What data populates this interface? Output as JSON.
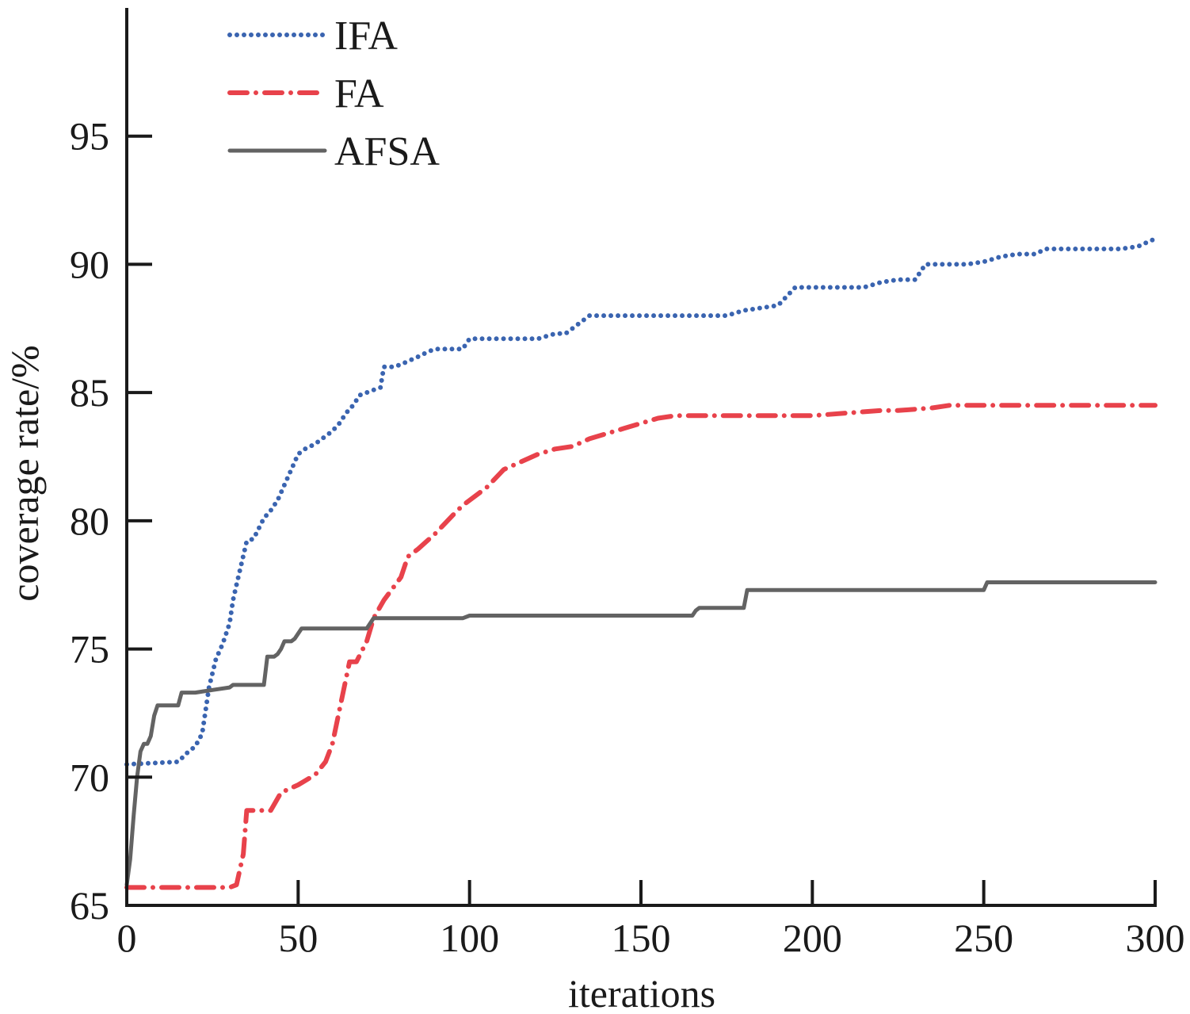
{
  "chart_data": {
    "type": "line",
    "title": "",
    "xlabel": "iterations",
    "ylabel": "coverage rate/%",
    "xlim": [
      0,
      300
    ],
    "ylim": [
      65,
      100
    ],
    "xticks": [
      0,
      50,
      100,
      150,
      200,
      250,
      300
    ],
    "yticks": [
      65,
      70,
      75,
      80,
      85,
      90,
      95
    ],
    "grid": false,
    "legend_position": "top-left",
    "series": [
      {
        "name": "IFA",
        "color": "#3a64b0",
        "style": "dotted",
        "x": [
          0,
          15,
          18,
          20,
          22,
          24,
          26,
          28,
          30,
          31,
          32,
          35,
          37,
          40,
          42,
          44,
          46,
          48,
          50,
          52,
          55,
          58,
          60,
          62,
          64,
          66,
          68,
          70,
          72,
          74,
          75,
          78,
          80,
          85,
          88,
          90,
          95,
          98,
          100,
          105,
          110,
          115,
          120,
          125,
          128,
          130,
          135,
          140,
          145,
          150,
          155,
          160,
          165,
          170,
          175,
          180,
          185,
          190,
          195,
          200,
          205,
          210,
          215,
          220,
          225,
          230,
          233,
          235,
          240,
          245,
          250,
          255,
          260,
          265,
          268,
          270,
          275,
          280,
          285,
          290,
          295,
          300
        ],
        "y": [
          70.5,
          70.6,
          71.0,
          71.2,
          71.7,
          73.5,
          74.6,
          75.2,
          76.0,
          76.9,
          77.5,
          79.2,
          79.3,
          80.1,
          80.4,
          80.8,
          81.4,
          82.0,
          82.6,
          82.8,
          83.0,
          83.3,
          83.5,
          83.8,
          84.2,
          84.5,
          84.9,
          85.0,
          85.1,
          85.2,
          86.0,
          86.0,
          86.1,
          86.4,
          86.6,
          86.7,
          86.7,
          86.7,
          87.1,
          87.1,
          87.1,
          87.1,
          87.1,
          87.3,
          87.3,
          87.5,
          88.0,
          88.0,
          88.0,
          88.0,
          88.0,
          88.0,
          88.0,
          88.0,
          88.0,
          88.2,
          88.3,
          88.4,
          89.1,
          89.1,
          89.1,
          89.1,
          89.1,
          89.3,
          89.4,
          89.4,
          90.0,
          90.0,
          90.0,
          90.0,
          90.1,
          90.3,
          90.4,
          90.4,
          90.6,
          90.6,
          90.6,
          90.6,
          90.6,
          90.6,
          90.7,
          91.0
        ]
      },
      {
        "name": "FA",
        "color": "#e8424b",
        "style": "dash-dot",
        "x": [
          0,
          10,
          20,
          30,
          32,
          34,
          35,
          40,
          42,
          45,
          50,
          55,
          58,
          60,
          62,
          65,
          67,
          70,
          72,
          75,
          80,
          82,
          85,
          90,
          95,
          98,
          100,
          105,
          110,
          115,
          120,
          125,
          130,
          135,
          140,
          145,
          150,
          155,
          160,
          170,
          180,
          190,
          200,
          210,
          220,
          225,
          235,
          240,
          250,
          260,
          270,
          280,
          290,
          300
        ],
        "y": [
          65.7,
          65.7,
          65.7,
          65.7,
          65.8,
          67.0,
          68.7,
          68.7,
          68.7,
          69.4,
          69.7,
          70.1,
          70.6,
          71.3,
          72.6,
          74.5,
          74.5,
          75.3,
          76.2,
          76.9,
          77.8,
          78.6,
          78.9,
          79.5,
          80.2,
          80.6,
          80.8,
          81.3,
          82.0,
          82.3,
          82.6,
          82.8,
          82.9,
          83.2,
          83.4,
          83.6,
          83.8,
          84.0,
          84.1,
          84.1,
          84.1,
          84.1,
          84.1,
          84.2,
          84.3,
          84.3,
          84.4,
          84.5,
          84.5,
          84.5,
          84.5,
          84.5,
          84.5,
          84.5
        ]
      },
      {
        "name": "AFSA",
        "color": "#636363",
        "style": "solid",
        "x": [
          0,
          1,
          2,
          3,
          4,
          5,
          6,
          7,
          8,
          9,
          15,
          16,
          20,
          25,
          30,
          31,
          40,
          41,
          43,
          44,
          45,
          46,
          48,
          49,
          50,
          51,
          60,
          65,
          70,
          71,
          72,
          73,
          80,
          90,
          98,
          100,
          120,
          140,
          150,
          160,
          165,
          166,
          167,
          170,
          175,
          180,
          181,
          185,
          190,
          200,
          220,
          240,
          250,
          251,
          260,
          280,
          300
        ],
        "y": [
          65.8,
          66.8,
          68.5,
          70.0,
          71.0,
          71.3,
          71.3,
          71.6,
          72.4,
          72.8,
          72.8,
          73.3,
          73.3,
          73.4,
          73.5,
          73.6,
          73.6,
          74.7,
          74.7,
          74.8,
          75.0,
          75.3,
          75.3,
          75.4,
          75.6,
          75.8,
          75.8,
          75.8,
          75.8,
          76.0,
          76.2,
          76.2,
          76.2,
          76.2,
          76.2,
          76.3,
          76.3,
          76.3,
          76.3,
          76.3,
          76.3,
          76.5,
          76.6,
          76.6,
          76.6,
          76.6,
          77.3,
          77.3,
          77.3,
          77.3,
          77.3,
          77.3,
          77.3,
          77.6,
          77.6,
          77.6,
          77.6
        ]
      }
    ]
  }
}
